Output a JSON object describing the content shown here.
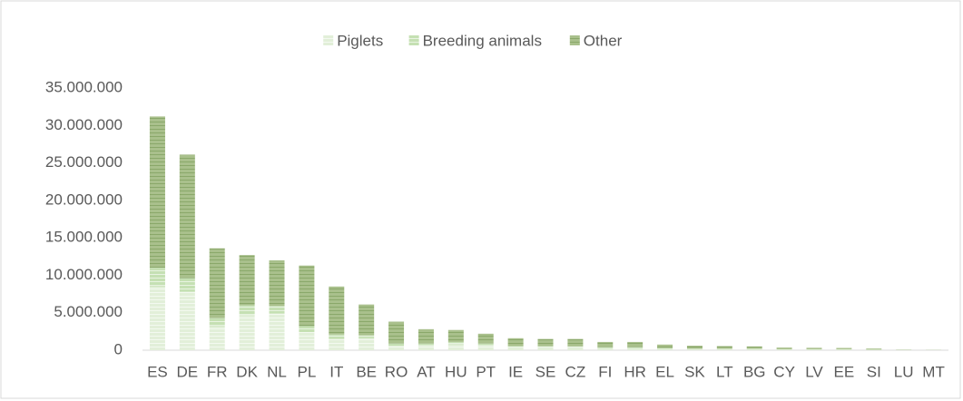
{
  "chart_data": {
    "type": "stacked_bar",
    "categories": [
      "ES",
      "DE",
      "FR",
      "DK",
      "NL",
      "PL",
      "IT",
      "BE",
      "RO",
      "AT",
      "HU",
      "PT",
      "IE",
      "SE",
      "CZ",
      "FI",
      "HR",
      "EL",
      "SK",
      "LT",
      "BG",
      "CY",
      "LV",
      "EE",
      "SI",
      "LU",
      "MT"
    ],
    "series": [
      {
        "name": "Piglets",
        "color": "#e2efd9",
        "values": [
          8500000,
          7800000,
          3200000,
          4700000,
          4900000,
          2400000,
          1500000,
          1600000,
          600000,
          700000,
          800000,
          700000,
          400000,
          400000,
          400000,
          300000,
          300000,
          200000,
          150000,
          150000,
          150000,
          100000,
          100000,
          100000,
          60000,
          30000,
          10000
        ]
      },
      {
        "name": "Breeding animals",
        "color": "#c5e0b3",
        "values": [
          2500000,
          1800000,
          1100000,
          1300000,
          1000000,
          800000,
          600000,
          400000,
          300000,
          200000,
          300000,
          200000,
          150000,
          130000,
          100000,
          100000,
          100000,
          80000,
          50000,
          50000,
          50000,
          30000,
          30000,
          30000,
          20000,
          10000,
          5000
        ]
      },
      {
        "name": "Other",
        "color": "#a9c08c",
        "values": [
          20200000,
          16500000,
          9300000,
          6700000,
          6100000,
          8100000,
          6400000,
          4100000,
          2900000,
          1900000,
          1600000,
          1300000,
          1050000,
          970000,
          1000000,
          700000,
          700000,
          470000,
          400000,
          350000,
          300000,
          220000,
          190000,
          170000,
          140000,
          40000,
          25000
        ]
      }
    ],
    "ylim": [
      0,
      35000000
    ],
    "yticks": [
      0,
      {
        "value": 5000000,
        "label": "5.000.000"
      },
      {
        "value": 10000000,
        "label": "10.000.000"
      },
      {
        "value": 15000000,
        "label": "15.000.000"
      },
      {
        "value": 20000000,
        "label": "20.000.000"
      },
      {
        "value": 25000000,
        "label": "25.000.000"
      },
      {
        "value": 30000000,
        "label": "30.000.000"
      },
      {
        "value": 35000000,
        "label": "35.000.000"
      }
    ],
    "grid": false,
    "legend": "top"
  }
}
